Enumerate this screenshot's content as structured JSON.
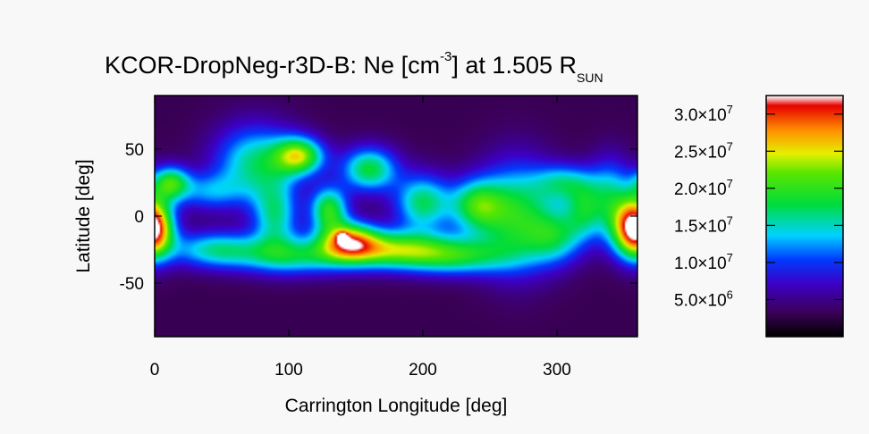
{
  "chart_data": {
    "type": "heatmap",
    "title": {
      "prefix": "KCOR-DropNeg-r3D-B: Ne [cm",
      "exp": "-3",
      "middle": "] at 1.505 R",
      "subscript": "SUN"
    },
    "xlabel": "Carrington Longitude [deg]",
    "ylabel": "Latitude [deg]",
    "xlim": [
      0,
      360
    ],
    "ylim": [
      -90,
      90
    ],
    "xticks": [
      0,
      100,
      200,
      300
    ],
    "xtick_labels": [
      "0",
      "100",
      "200",
      "300"
    ],
    "yticks": [
      50,
      0,
      -50
    ],
    "ytick_labels": [
      "50",
      "0",
      "-50"
    ],
    "colorbar": {
      "range": [
        0,
        32500000
      ],
      "ticks": [
        {
          "value": 30000000,
          "mantissa": "3.0",
          "exp": "7"
        },
        {
          "value": 25000000,
          "mantissa": "2.5",
          "exp": "7"
        },
        {
          "value": 20000000,
          "mantissa": "2.0",
          "exp": "7"
        },
        {
          "value": 15000000,
          "mantissa": "1.5",
          "exp": "7"
        },
        {
          "value": 10000000,
          "mantissa": "1.0",
          "exp": "7"
        },
        {
          "value": 5000000,
          "mantissa": "5.0",
          "exp": "6"
        }
      ],
      "colormap": "rainbow-black-purple-blue-cyan-green-yellow-red-white"
    },
    "background_level": 3000000,
    "features": [
      {
        "lon": 0,
        "lat": -8,
        "ne": 18000000,
        "sigma_lon": 10,
        "sigma_lat": 16
      },
      {
        "lon": 12,
        "lat": 25,
        "ne": 15000000,
        "sigma_lon": 10,
        "sigma_lat": 9
      },
      {
        "lon": 45,
        "lat": -25,
        "ne": 12000000,
        "sigma_lon": 25,
        "sigma_lat": 10
      },
      {
        "lon": 40,
        "lat": 18,
        "ne": 8000000,
        "sigma_lon": 18,
        "sigma_lat": 10
      },
      {
        "lon": 75,
        "lat": 40,
        "ne": 13000000,
        "sigma_lon": 22,
        "sigma_lat": 20
      },
      {
        "lon": 108,
        "lat": 45,
        "ne": 18000000,
        "sigma_lon": 13,
        "sigma_lat": 10
      },
      {
        "lon": 90,
        "lat": 0,
        "ne": 12000000,
        "sigma_lon": 12,
        "sigma_lat": 18
      },
      {
        "lon": 105,
        "lat": -30,
        "ne": 12000000,
        "sigma_lon": 30,
        "sigma_lat": 10
      },
      {
        "lon": 130,
        "lat": 5,
        "ne": 16000000,
        "sigma_lon": 10,
        "sigma_lat": 12
      },
      {
        "lon": 145,
        "lat": -18,
        "ne": 18000000,
        "sigma_lon": 15,
        "sigma_lat": 10
      },
      {
        "lon": 175,
        "lat": -25,
        "ne": 17000000,
        "sigma_lon": 30,
        "sigma_lat": 10
      },
      {
        "lon": 160,
        "lat": 35,
        "ne": 15000000,
        "sigma_lon": 15,
        "sigma_lat": 12
      },
      {
        "lon": 200,
        "lat": 10,
        "ne": 14000000,
        "sigma_lon": 15,
        "sigma_lat": 15
      },
      {
        "lon": 225,
        "lat": -30,
        "ne": 13000000,
        "sigma_lon": 28,
        "sigma_lat": 10
      },
      {
        "lon": 240,
        "lat": 8,
        "ne": 14000000,
        "sigma_lon": 14,
        "sigma_lat": 14
      },
      {
        "lon": 270,
        "lat": 0,
        "ne": 15000000,
        "sigma_lon": 20,
        "sigma_lat": 28
      },
      {
        "lon": 300,
        "lat": -15,
        "ne": 11000000,
        "sigma_lon": 15,
        "sigma_lat": 15
      },
      {
        "lon": 305,
        "lat": 25,
        "ne": 10000000,
        "sigma_lon": 15,
        "sigma_lat": 10
      },
      {
        "lon": 320,
        "lat": 5,
        "ne": 10000000,
        "sigma_lon": 10,
        "sigma_lat": 15
      },
      {
        "lon": 340,
        "lat": 15,
        "ne": 11000000,
        "sigma_lon": 12,
        "sigma_lat": 20
      },
      {
        "lon": 355,
        "lat": -10,
        "ne": 14000000,
        "sigma_lon": 12,
        "sigma_lat": 15
      },
      {
        "lon": 140,
        "lat": -16,
        "ne": 10000000,
        "sigma_lon": 3,
        "sigma_lat": 3
      }
    ]
  }
}
